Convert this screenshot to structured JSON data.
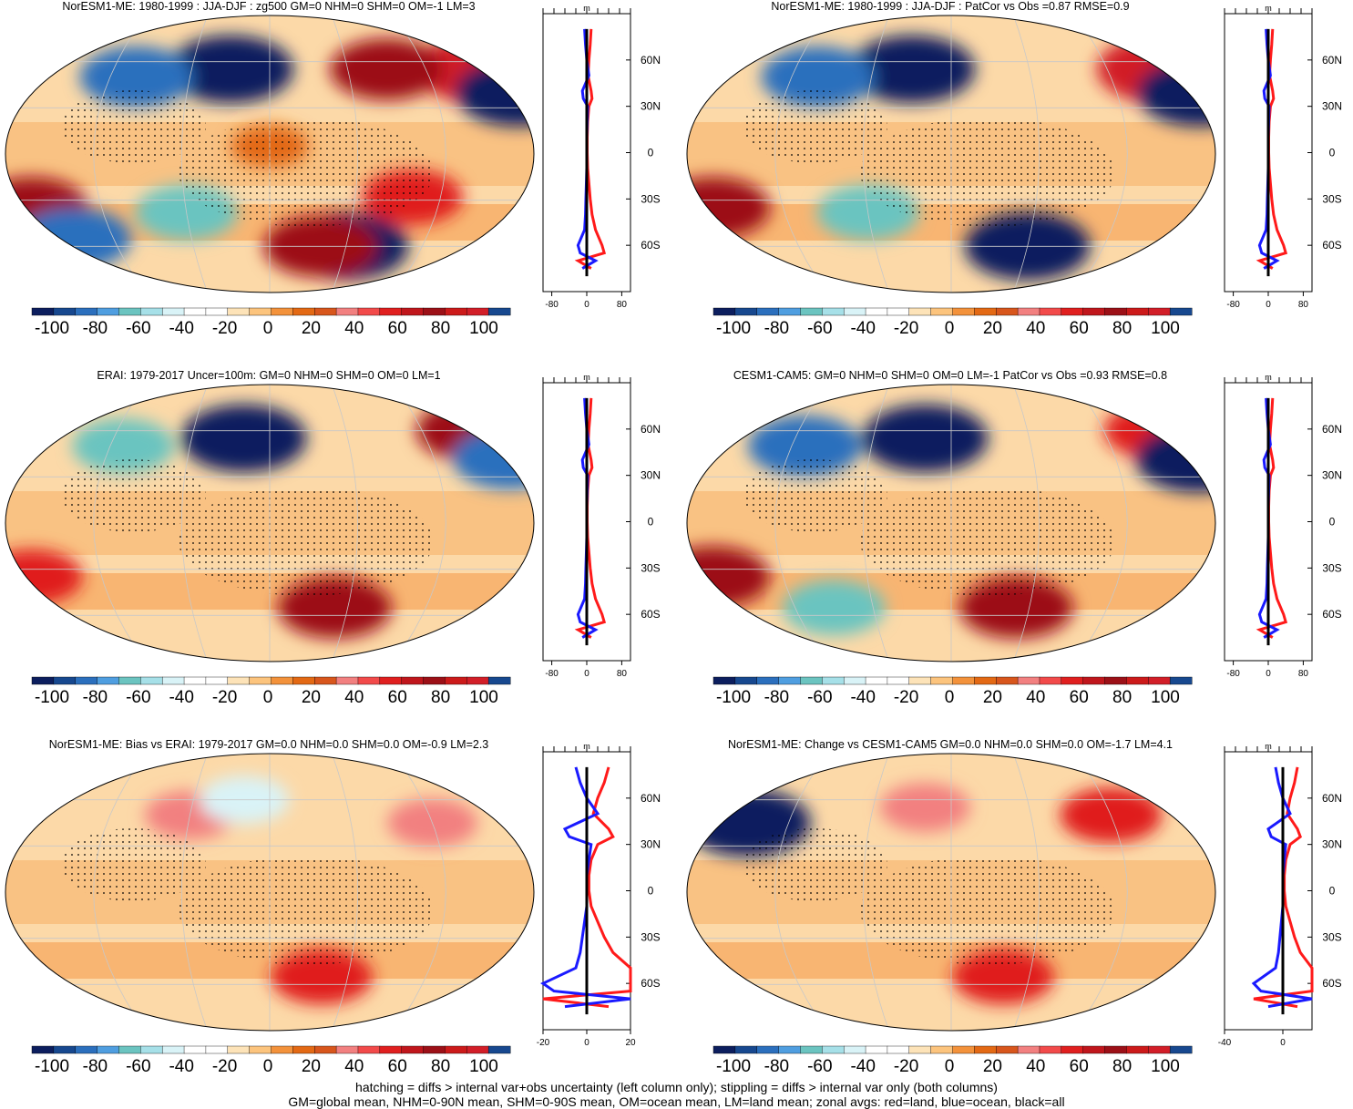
{
  "figure": {
    "footer_line1": "hatching = diffs > internal var+obs uncertainty (left column only); stippling = diffs > internal var only (both columns)",
    "footer_line2": "GM=global mean, NHM=0-90N mean, SHM=0-90S mean, OM=ocean mean, LM=land mean; zonal avgs: red=land, blue=ocean, black=all"
  },
  "colors": {
    "red_land": "#ff1a1a",
    "blue_ocean": "#1a1aff",
    "black_all": "#000000",
    "palette": [
      "#0c1e5e",
      "#17488f",
      "#2b6fbd",
      "#4f9ee0",
      "#6bc4c0",
      "#a6e0e8",
      "#d9f3f7",
      "#ffffff",
      "#ffffff",
      "#fde3b8",
      "#fcc47d",
      "#f3923b",
      "#e36914",
      "#d8561c",
      "#f28080",
      "#f24a4a",
      "#e01f1f",
      "#c0161c",
      "#9c1017",
      "#cc1a1a",
      "#d21e28",
      "#17488f"
    ]
  },
  "colorbar": {
    "tick_labels": [
      "-100",
      "-80",
      "-60",
      "-40",
      "-20",
      "0",
      "20",
      "40",
      "60",
      "80",
      "100"
    ]
  },
  "panels": [
    {
      "title": "NorESM1-ME: 1980-1999 : JJA-DJF : zg500 GM=0 NHM=0 SHM=0 OM=-1 LM=3",
      "stipple": true,
      "zonal": {
        "unit": "m",
        "xticks": [
          "-80",
          "0",
          "80"
        ],
        "xrange": [
          -100,
          100
        ]
      }
    },
    {
      "title": "NorESM1-ME: 1980-1999 : JJA-DJF : PatCor vs Obs =0.87 RMSE=0.9",
      "stipple": true,
      "zonal": {
        "unit": "m",
        "xticks": [
          "-80",
          "0",
          "80"
        ],
        "xrange": [
          -100,
          100
        ]
      }
    },
    {
      "title": "ERAI: 1979-2017 Uncer=100m: GM=0 NHM=0 SHM=0 OM=0 LM=1",
      "stipple": true,
      "zonal": {
        "unit": "m",
        "xticks": [
          "-80",
          "0",
          "80"
        ],
        "xrange": [
          -100,
          100
        ]
      }
    },
    {
      "title": "CESM1-CAM5: GM=0 NHM=0 SHM=0 OM=0 LM=-1 PatCor vs Obs =0.93 RMSE=0.8",
      "stipple": true,
      "zonal": {
        "unit": "m",
        "xticks": [
          "-80",
          "0",
          "80"
        ],
        "xrange": [
          -100,
          100
        ]
      }
    },
    {
      "title": "NorESM1-ME: Bias vs ERAI: 1979-2017 GM=0.0 NHM=0.0 SHM=0.0 OM=-0.9 LM=2.3",
      "stipple": true,
      "zonal": {
        "unit": "m",
        "xticks": [
          "-20",
          "0",
          "20"
        ],
        "xrange": [
          -20,
          20
        ]
      }
    },
    {
      "title": "NorESM1-ME: Change vs CESM1-CAM5 GM=0.0 NHM=0.0 SHM=0.0 OM=-1.7 LM=4.1",
      "stipple": true,
      "zonal": {
        "unit": "m",
        "xticks": [
          "-40",
          "0"
        ],
        "xrange": [
          -40,
          20
        ]
      }
    }
  ],
  "chart_data": [
    {
      "type": "heatmap",
      "title": "NorESM1-ME: 1980-1999 : JJA-DJF : zg500 GM=0 NHM=0 SHM=0 OM=-1 LM=3",
      "map_features": [
        {
          "lon": -30,
          "lat": 55,
          "value": -100
        },
        {
          "lon": -100,
          "lat": 50,
          "value": -80
        },
        {
          "lon": 160,
          "lat": 55,
          "value": 100
        },
        {
          "lon": 90,
          "lat": 55,
          "value": 80
        },
        {
          "lon": 180,
          "lat": 40,
          "value": -100
        },
        {
          "lon": -170,
          "lat": -35,
          "value": 80
        },
        {
          "lon": -60,
          "lat": -38,
          "value": -60
        },
        {
          "lon": -150,
          "lat": -55,
          "value": -80
        },
        {
          "lon": 60,
          "lat": -60,
          "value": -100
        },
        {
          "lon": 40,
          "lat": -60,
          "value": 80
        },
        {
          "lon": 100,
          "lat": -28,
          "value": 60
        },
        {
          "lon": 0,
          "lat": 5,
          "value": 20
        }
      ],
      "colorbar": [
        -100,
        -90,
        -80,
        -70,
        -60,
        -50,
        -40,
        -30,
        -20,
        -10,
        0,
        10,
        20,
        30,
        40,
        50,
        60,
        70,
        80,
        90,
        100
      ]
    },
    {
      "type": "line",
      "title": "zonal avgs: red=land, blue=ocean, black=all",
      "xlabel": "m",
      "xlim": [
        -100,
        100
      ],
      "ylabel": "",
      "ylim": [
        -90,
        90
      ],
      "yticks": [
        "60N",
        "30N",
        "0",
        "30S",
        "60S"
      ],
      "series": [
        {
          "name": "land",
          "lat": [
            80,
            70,
            60,
            50,
            40,
            35,
            30,
            20,
            10,
            0,
            -10,
            -20,
            -30,
            -40,
            -50,
            -60,
            -65,
            -70,
            -75
          ],
          "values": [
            10,
            8,
            5,
            3,
            10,
            12,
            5,
            2,
            1,
            1,
            2,
            5,
            8,
            12,
            20,
            35,
            40,
            -20,
            10
          ]
        },
        {
          "name": "ocean",
          "lat": [
            80,
            70,
            60,
            50,
            40,
            35,
            30,
            20,
            10,
            0,
            -10,
            -20,
            -30,
            -40,
            -50,
            -60,
            -65,
            -70,
            -75
          ],
          "values": [
            -5,
            -3,
            0,
            5,
            -10,
            -8,
            2,
            1,
            0,
            0,
            0,
            -1,
            -2,
            -3,
            -5,
            -20,
            -15,
            20,
            -10
          ]
        },
        {
          "name": "all",
          "lat": [
            80,
            0,
            -80
          ],
          "values": [
            0,
            0,
            0
          ]
        }
      ]
    },
    {
      "type": "heatmap",
      "title": "NorESM1-ME: 1980-1999 : JJA-DJF : PatCor vs Obs =0.87 RMSE=0.9",
      "map_features": [
        {
          "lon": -30,
          "lat": 55,
          "value": -100
        },
        {
          "lon": -100,
          "lat": 50,
          "value": -80
        },
        {
          "lon": 160,
          "lat": 55,
          "value": 100
        },
        {
          "lon": 180,
          "lat": 40,
          "value": -100
        },
        {
          "lon": -170,
          "lat": -35,
          "value": 80
        },
        {
          "lon": -60,
          "lat": -38,
          "value": -60
        },
        {
          "lon": 60,
          "lat": -60,
          "value": -100
        }
      ],
      "colorbar": [
        -100,
        -90,
        -80,
        -70,
        -60,
        -50,
        -40,
        -30,
        -20,
        -10,
        0,
        10,
        20,
        30,
        40,
        50,
        60,
        70,
        80,
        90,
        100
      ]
    },
    {
      "type": "heatmap",
      "title": "ERAI: 1979-2017 Uncer=100m: GM=0 NHM=0 SHM=0 OM=0 LM=1",
      "map_features": [
        {
          "lon": -20,
          "lat": 55,
          "value": -100
        },
        {
          "lon": -110,
          "lat": 50,
          "value": -60
        },
        {
          "lon": 160,
          "lat": 60,
          "value": 80
        },
        {
          "lon": 175,
          "lat": 42,
          "value": -80
        },
        {
          "lon": -170,
          "lat": -35,
          "value": 60
        },
        {
          "lon": 50,
          "lat": -55,
          "value": 80
        }
      ],
      "colorbar": [
        -100,
        -90,
        -80,
        -70,
        -60,
        -50,
        -40,
        -30,
        -20,
        -10,
        0,
        10,
        20,
        30,
        40,
        50,
        60,
        70,
        80,
        90,
        100
      ]
    },
    {
      "type": "heatmap",
      "title": "CESM1-CAM5: GM=0 NHM=0 SHM=0 OM=0 LM=-1 PatCor vs Obs =0.93 RMSE=0.8",
      "map_features": [
        {
          "lon": -20,
          "lat": 55,
          "value": -100
        },
        {
          "lon": -110,
          "lat": 50,
          "value": -80
        },
        {
          "lon": 160,
          "lat": 60,
          "value": 60
        },
        {
          "lon": 180,
          "lat": 42,
          "value": -100
        },
        {
          "lon": -170,
          "lat": -35,
          "value": 80
        },
        {
          "lon": -90,
          "lat": -55,
          "value": -60
        },
        {
          "lon": 50,
          "lat": -55,
          "value": 80
        }
      ],
      "colorbar": [
        -100,
        -90,
        -80,
        -70,
        -60,
        -50,
        -40,
        -30,
        -20,
        -10,
        0,
        10,
        20,
        30,
        40,
        50,
        60,
        70,
        80,
        90,
        100
      ]
    },
    {
      "type": "heatmap",
      "title": "NorESM1-ME: Bias vs ERAI: 1979-2017 GM=0.0 NHM=0.0 SHM=0.0 OM=-0.9 LM=2.3",
      "map_features": [
        {
          "lon": -60,
          "lat": 50,
          "value": 40
        },
        {
          "lon": 120,
          "lat": 45,
          "value": 40
        },
        {
          "lon": -20,
          "lat": 60,
          "value": -40
        },
        {
          "lon": 40,
          "lat": -55,
          "value": 60
        }
      ],
      "colorbar": [
        -100,
        -90,
        -80,
        -70,
        -60,
        -50,
        -40,
        -30,
        -20,
        -10,
        0,
        10,
        20,
        30,
        40,
        50,
        60,
        70,
        80,
        90,
        100
      ]
    },
    {
      "type": "heatmap",
      "title": "NorESM1-ME: Change vs CESM1-CAM5 GM=0.0 NHM=0.0 SHM=0.0 OM=-1.7 LM=4.1",
      "map_features": [
        {
          "lon": -150,
          "lat": 45,
          "value": -100
        },
        {
          "lon": 120,
          "lat": 50,
          "value": 60
        },
        {
          "lon": -20,
          "lat": 55,
          "value": 40
        },
        {
          "lon": 40,
          "lat": -55,
          "value": 60
        }
      ],
      "colorbar": [
        -100,
        -90,
        -80,
        -70,
        -60,
        -50,
        -40,
        -30,
        -20,
        -10,
        0,
        10,
        20,
        30,
        40,
        50,
        60,
        70,
        80,
        90,
        100
      ]
    }
  ]
}
